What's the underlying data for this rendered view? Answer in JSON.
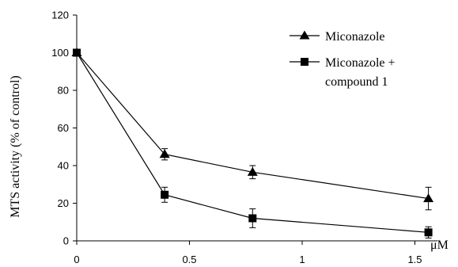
{
  "chart_data": {
    "type": "line",
    "xlabel": "μM",
    "ylabel": "MTS activity (% of control)",
    "xlim": [
      0,
      1.6
    ],
    "ylim": [
      0,
      120
    ],
    "x_ticks": [
      "0",
      "0.5",
      "1",
      "1.5"
    ],
    "y_ticks": [
      "0",
      "20",
      "40",
      "60",
      "80",
      "100",
      "120"
    ],
    "grid": false,
    "legend_position": "top-right",
    "series": [
      {
        "name": "Miconazole",
        "marker": "triangle",
        "x": [
          0,
          0.39,
          0.78,
          1.56
        ],
        "y": [
          100,
          46,
          36.5,
          22.5
        ],
        "error": [
          1.5,
          3,
          3.5,
          6
        ]
      },
      {
        "name": "Miconazole + compound 1",
        "name_lines": [
          "Miconazole +",
          "compound 1"
        ],
        "marker": "square",
        "x": [
          0,
          0.39,
          0.78,
          1.56
        ],
        "y": [
          100,
          24.5,
          12,
          4.5
        ],
        "error": [
          1.5,
          4,
          5,
          3
        ]
      }
    ],
    "colors": {
      "line": "#000000",
      "marker": "#000000"
    }
  }
}
